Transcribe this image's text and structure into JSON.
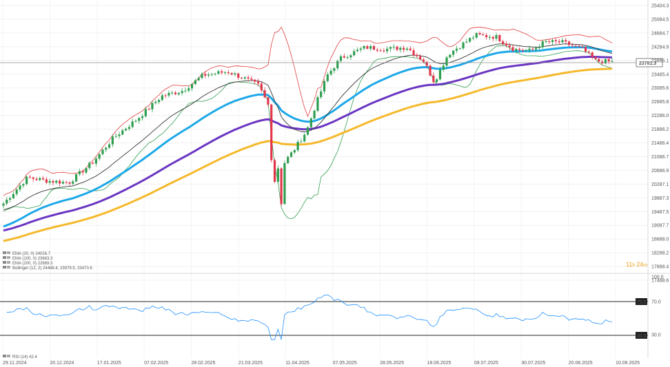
{
  "chart_data": [
    {
      "type": "candlestick",
      "y_ticks": [
        "25404.3",
        "25084.5",
        "24684.7",
        "24284.9",
        "23885.1",
        "23485.4",
        "23085.6",
        "22685.8",
        "22286.0",
        "21886.2",
        "21486.4",
        "21086.7",
        "20686.9",
        "20287.1",
        "19887.3",
        "19487.5",
        "19087.7",
        "18688.0",
        "18288.2",
        "17888.4",
        "17488.6"
      ],
      "x_ticks": [
        "29.11.2024",
        "20.12.2024",
        "17.01.2025",
        "07.02.2025",
        "28.02.2025",
        "21.03.2025",
        "11.04.2025",
        "07.05.2025",
        "28.05.2025",
        "18.06.2025",
        "09.07.2025",
        "30.07.2025",
        "20.08.2025",
        "10.09.2025"
      ],
      "last_price": "23781.3",
      "timer": {
        "hours": "11",
        "h": "h",
        "minutes": "24",
        "m": "m"
      },
      "legend": [
        {
          "name": "EMA",
          "params": "(20, 0)",
          "value": "24026.7",
          "color": "#333333"
        },
        {
          "name": "EMA",
          "params": "(100, 0)",
          "value": "23663.3",
          "color": "#1ca8e8"
        },
        {
          "name": "EMA",
          "params": "(200, 0)",
          "value": "22669.3",
          "color": "#f5b82a"
        },
        {
          "name": "Bollinger",
          "params": "(12, 2)",
          "value": "24488.4,  23979.5,  23470.6",
          "color": "#e23b3b"
        }
      ],
      "colors": {
        "up": "#2e9e4f",
        "down": "#e2364b",
        "ema20": "#333333",
        "ema100": "#1ca8e8",
        "ema200": "#f5b82a",
        "purple": "#6a35c2",
        "bb_upper": "#e23b3b",
        "bb_lower": "#2e9e4f",
        "timer": "#f0a020"
      }
    },
    {
      "type": "line",
      "y_ticks": [
        "100.0",
        "70.0",
        "30.0"
      ],
      "levels": {
        "upper": "70.0",
        "lower": "30.0"
      },
      "legend": {
        "name": "RSI",
        "params": "(14)",
        "value": "42.4"
      },
      "color": "#1e90ff"
    }
  ]
}
